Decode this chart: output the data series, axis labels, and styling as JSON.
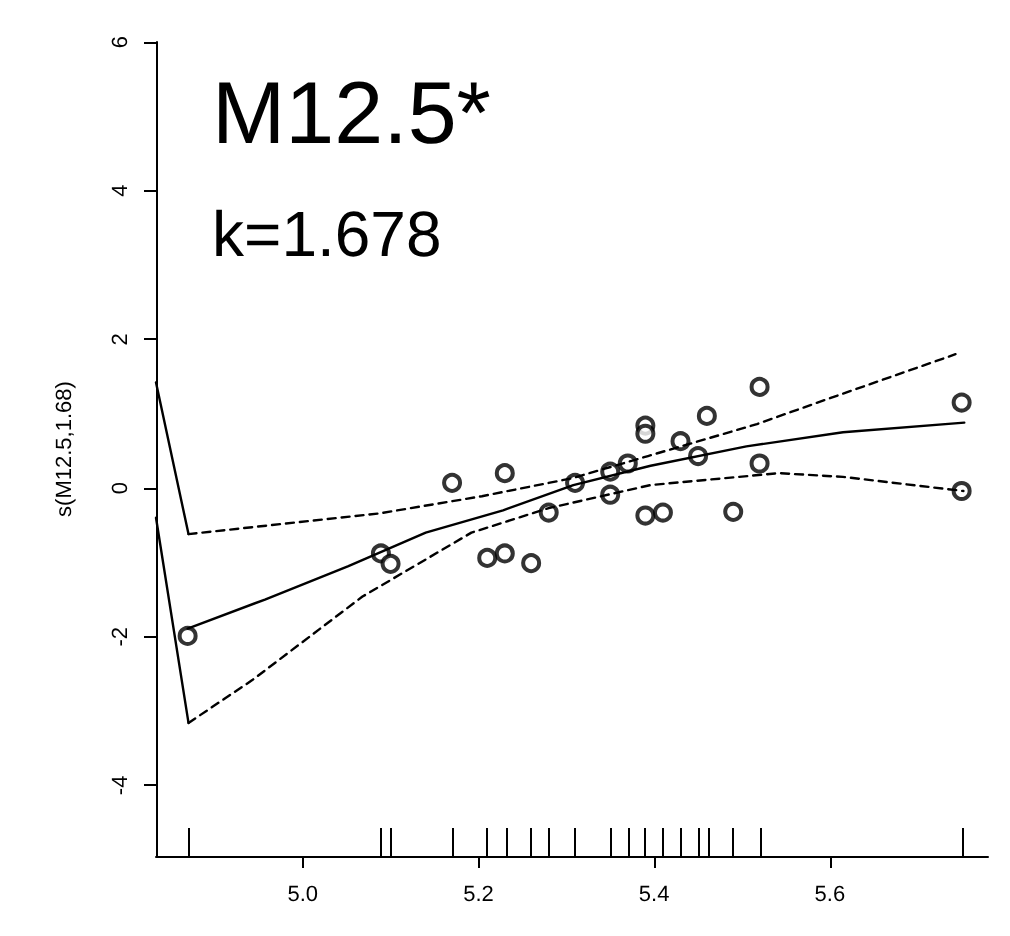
{
  "chart_data": {
    "type": "scatter",
    "title": "M12.5*",
    "subtitle": "k=1.678",
    "ylabel": "s(M12.5,1.68)",
    "xlim": [
      4.833,
      5.78
    ],
    "ylim": [
      -4.95,
      6
    ],
    "xticks": [
      {
        "value": 5,
        "label": "5.0"
      },
      5.2,
      5.4,
      5.6,
      {
        "value": 4.869,
        "label": null
      },
      {
        "value": 5.089,
        "label": null
      },
      {
        "value": 5.1,
        "label": null
      },
      {
        "value": 5.17,
        "label": null
      },
      {
        "value": 5.21,
        "label": null
      },
      {
        "value": 5.231,
        "label": null
      },
      {
        "value": 5.26,
        "label": null
      },
      {
        "value": 5.28,
        "label": null
      },
      {
        "value": 5.31,
        "label": null
      },
      {
        "value": 5.351,
        "label": null
      },
      {
        "value": 5.37,
        "label": null
      },
      {
        "value": 5.39,
        "label": null
      },
      {
        "value": 5.409,
        "label": null
      },
      {
        "value": 5.43,
        "label": null
      },
      {
        "value": 5.451,
        "label": null
      },
      {
        "value": 5.461,
        "label": null
      },
      {
        "value": 5.49,
        "label": null
      },
      {
        "value": 5.521,
        "label": null
      },
      {
        "value": 5.752,
        "label": null
      }
    ],
    "yticks": [
      -4,
      -2,
      0,
      2,
      4,
      6
    ],
    "grid": false,
    "series": [
      {
        "marker": "circle",
        "color": "#000000",
        "x": [
          4.869,
          5.089,
          5.1,
          5.17,
          5.21,
          5.23,
          5.23,
          5.26,
          5.28,
          5.31,
          5.35,
          5.35,
          5.37,
          5.39,
          5.39,
          5.39,
          5.41,
          5.43,
          5.45,
          5.46,
          5.49,
          5.52,
          5.52,
          5.75,
          5.75
        ],
        "values": [
          -1.99,
          -0.88,
          -1.02,
          0.07,
          -0.94,
          0.2,
          -0.88,
          -1.01,
          -0.33,
          0.07,
          0.22,
          -0.09,
          0.33,
          0.84,
          0.73,
          -0.37,
          -0.33,
          0.63,
          0.43,
          0.97,
          -0.32,
          1.36,
          0.33,
          1.15,
          -0.04
        ]
      },
      {
        "type": "line",
        "marker": "none",
        "line_style": "solid",
        "color": "#000000",
        "x": [
          4.869,
          4.957,
          5.052,
          5.14,
          5.228,
          5.308,
          5.396,
          5.505,
          5.615,
          5.753
        ],
        "values": [
          -1.89,
          -1.5,
          -1.05,
          -0.6,
          -0.3,
          0.04,
          0.3,
          0.56,
          0.75,
          0.88
        ]
      },
      {
        "type": "line",
        "marker": "none",
        "line_style": "dashed",
        "color": "#000000",
        "x": [
          4.87,
          5.088,
          5.204,
          5.306,
          5.393,
          5.517,
          5.61,
          5.743
        ],
        "values": [
          -0.62,
          -0.34,
          -0.11,
          0.13,
          0.43,
          0.86,
          1.25,
          1.8
        ]
      },
      {
        "type": "line",
        "marker": "none",
        "line_style": "dashed",
        "color": "#000000",
        "x": [
          4.87,
          4.943,
          5.068,
          5.192,
          5.28,
          5.396,
          5.542,
          5.615,
          5.752
        ],
        "values": [
          -3.16,
          -2.58,
          -1.46,
          -0.6,
          -0.27,
          0.04,
          0.2,
          0.15,
          -0.04
        ]
      },
      {
        "type": "line",
        "marker": "none",
        "line_style": "solid",
        "color": "#000000",
        "x": [
          4.833,
          4.87
        ],
        "values": [
          1.42,
          -0.62
        ]
      },
      {
        "type": "line",
        "marker": "none",
        "line_style": "solid",
        "color": "#000000",
        "x": [
          4.833,
          4.87
        ],
        "values": [
          -0.4,
          -3.16
        ]
      }
    ]
  }
}
